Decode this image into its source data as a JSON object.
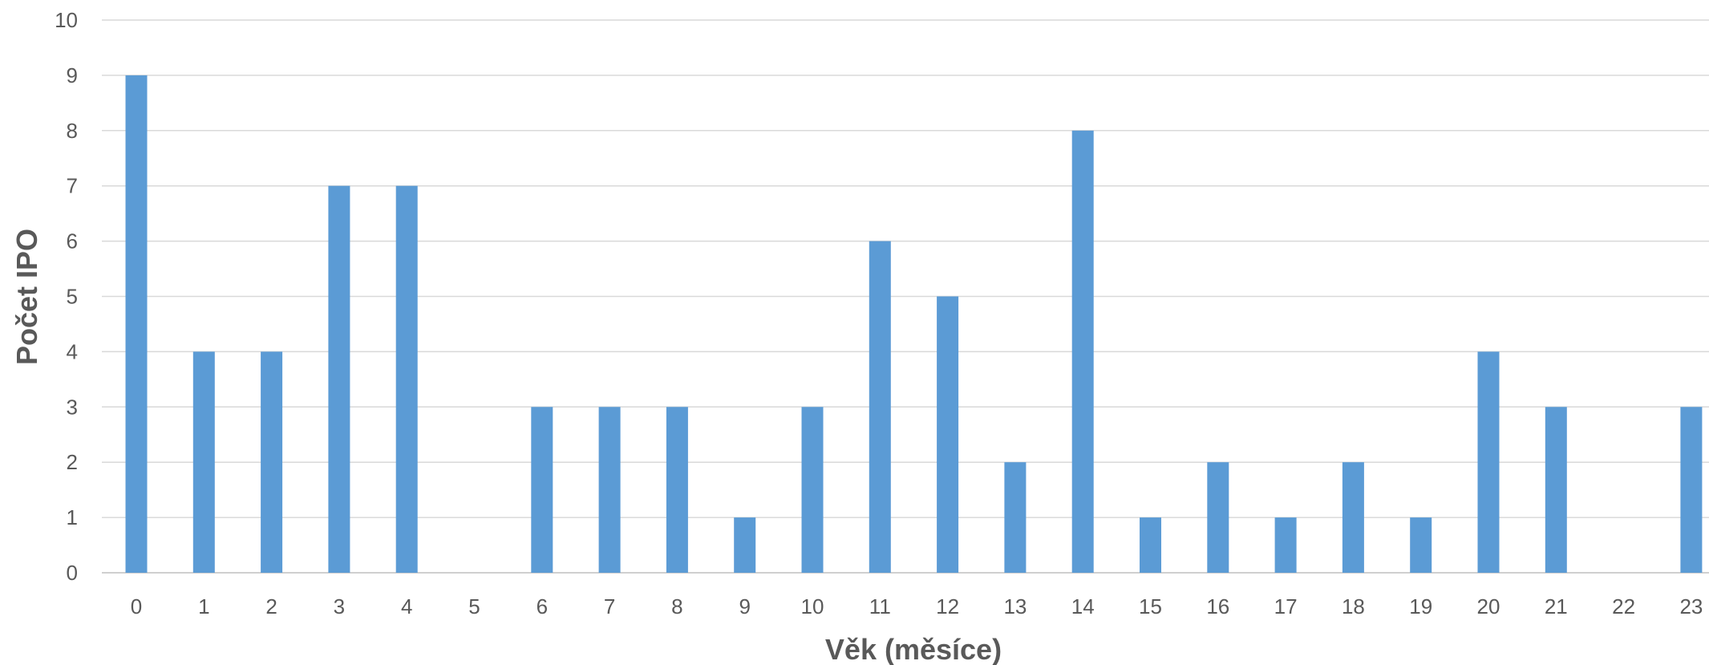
{
  "chart_data": {
    "type": "bar",
    "title": "",
    "xlabel": "Věk (měsíce)",
    "ylabel": "Počet IPO",
    "categories": [
      "0",
      "1",
      "2",
      "3",
      "4",
      "5",
      "6",
      "7",
      "8",
      "9",
      "10",
      "11",
      "12",
      "13",
      "14",
      "15",
      "16",
      "17",
      "18",
      "19",
      "20",
      "21",
      "22",
      "23"
    ],
    "values": [
      9,
      4,
      4,
      7,
      7,
      0,
      3,
      3,
      3,
      1,
      3,
      6,
      5,
      2,
      8,
      1,
      2,
      1,
      2,
      1,
      4,
      3,
      0,
      3
    ],
    "ylim": [
      0,
      10
    ],
    "yticks": [
      "0",
      "1",
      "2",
      "3",
      "4",
      "5",
      "6",
      "7",
      "8",
      "9",
      "10"
    ],
    "grid": true,
    "legend": "none",
    "bar_color": "#5b9bd5"
  }
}
